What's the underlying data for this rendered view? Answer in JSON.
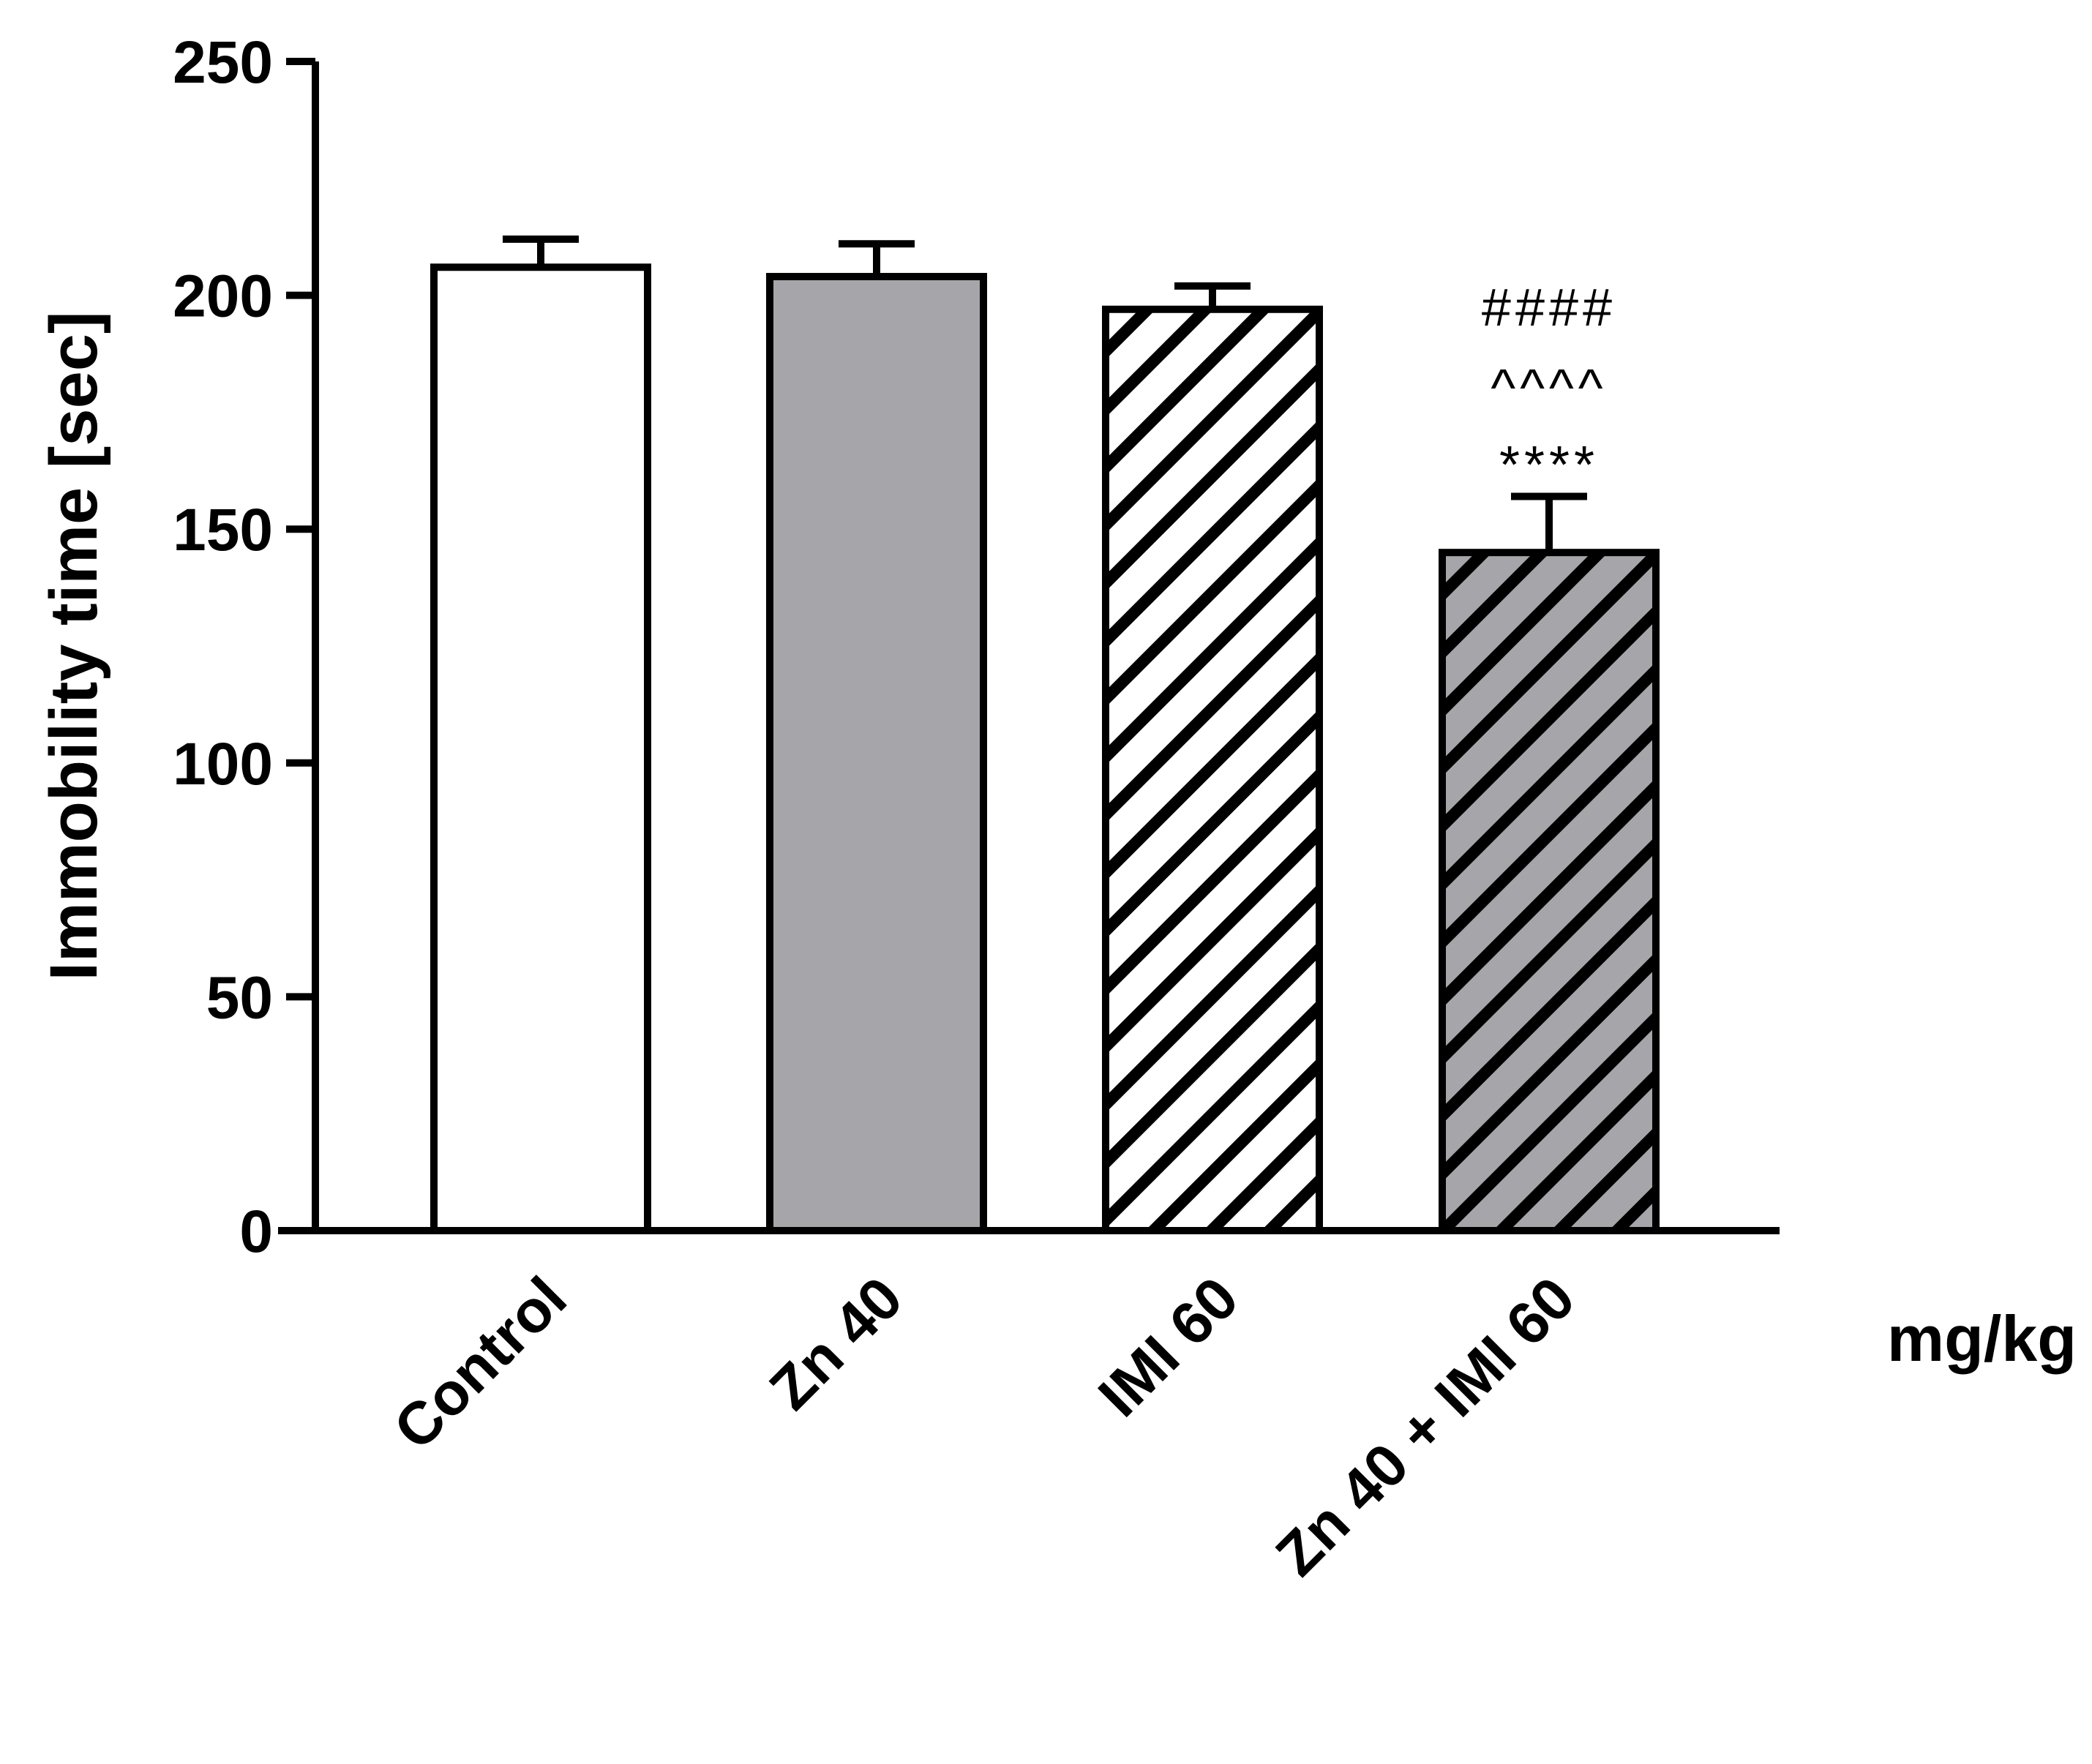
{
  "chart_data": {
    "type": "bar",
    "title": "",
    "xlabel": "",
    "ylabel": "Immobility time [sec]",
    "unit_label": "mg/kg",
    "ylim": [
      0,
      250
    ],
    "yticks": [
      0,
      50,
      100,
      150,
      200,
      250
    ],
    "yticks_labels": [
      "0",
      "50",
      "100",
      "150",
      "200",
      "250"
    ],
    "categories": [
      "Control",
      "Zn 40",
      "IMI 60",
      "Zn 40 + IMI 60"
    ],
    "values": [
      206,
      204,
      197,
      145
    ],
    "errors": [
      6,
      7,
      5,
      12
    ],
    "bar_styles": [
      {
        "fill": "#ffffff",
        "pattern": "none"
      },
      {
        "fill": "#a6a6aa",
        "pattern": "none"
      },
      {
        "fill": "#ffffff",
        "pattern": "diagonal-hatch"
      },
      {
        "fill": "#a6a6aa",
        "pattern": "diagonal-hatch"
      }
    ],
    "significance": [
      {
        "category_index": 3,
        "lines": [
          "####",
          "^^^^",
          "****"
        ]
      }
    ],
    "grid": false,
    "legend": "none"
  }
}
